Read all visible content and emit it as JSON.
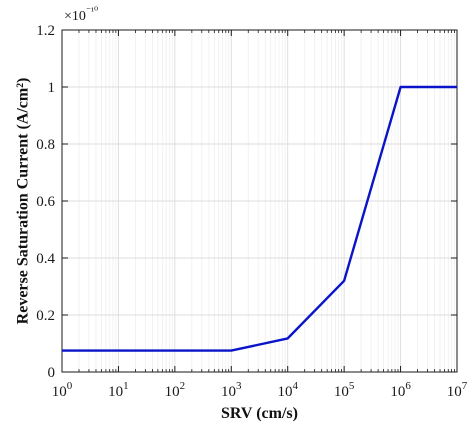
{
  "chart_data": {
    "type": "line",
    "x_scale": "log",
    "xlabel": "SRV (cm/s)",
    "ylabel": "Reverse Saturation Current (A/cm²)",
    "xlim": [
      1,
      10000000
    ],
    "ylim": [
      0,
      1.2
    ],
    "y_multiplier_label": "×10⁻¹⁰",
    "grid": true,
    "x_ticks": [
      {
        "value": 1,
        "base": "10",
        "exp": "0"
      },
      {
        "value": 10,
        "base": "10",
        "exp": "1"
      },
      {
        "value": 100,
        "base": "10",
        "exp": "2"
      },
      {
        "value": 1000,
        "base": "10",
        "exp": "3"
      },
      {
        "value": 10000,
        "base": "10",
        "exp": "4"
      },
      {
        "value": 100000,
        "base": "10",
        "exp": "5"
      },
      {
        "value": 1000000,
        "base": "10",
        "exp": "6"
      },
      {
        "value": 10000000,
        "base": "10",
        "exp": "7"
      }
    ],
    "y_ticks": [
      {
        "value": 0,
        "label": "0"
      },
      {
        "value": 0.2,
        "label": "0.2"
      },
      {
        "value": 0.4,
        "label": "0.4"
      },
      {
        "value": 0.6,
        "label": "0.6"
      },
      {
        "value": 0.8,
        "label": "0.8"
      },
      {
        "value": 1.0,
        "label": "1"
      },
      {
        "value": 1.2,
        "label": "1.2"
      }
    ],
    "series": [
      {
        "color": "#0a14c8",
        "x": [
          1,
          10,
          100,
          1000,
          10000,
          100000,
          1000000,
          10000000
        ],
        "y": [
          0.075,
          0.075,
          0.075,
          0.075,
          0.118,
          0.32,
          1.0,
          1.0
        ]
      }
    ]
  }
}
